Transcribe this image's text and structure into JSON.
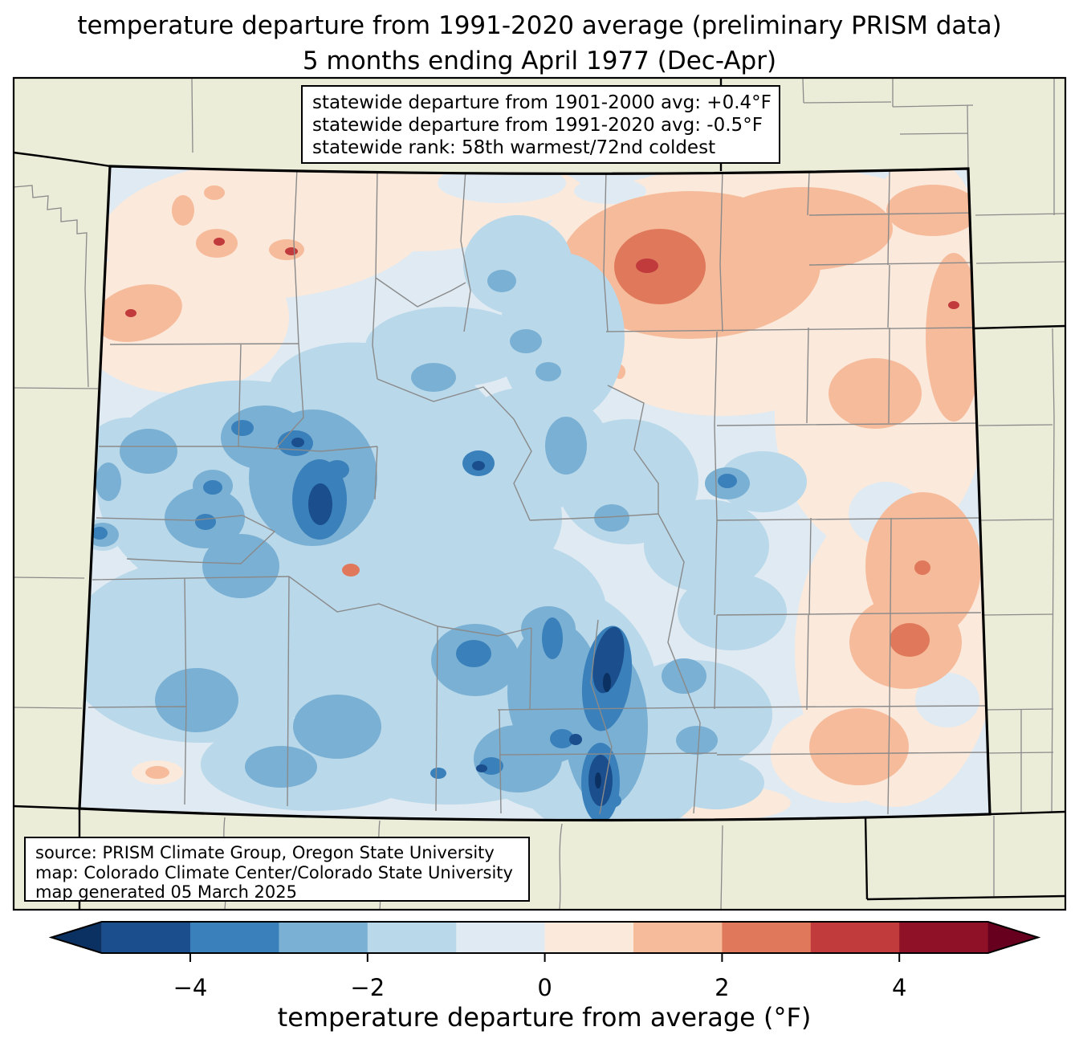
{
  "title": {
    "line1": "temperature departure from 1991-2020 average (preliminary PRISM data)",
    "line2": "5 months ending April 1977 (Dec-Apr)"
  },
  "stats_box": {
    "line1": "statewide departure from 1901-2000 avg: +0.4°F",
    "line2": "statewide departure from 1991-2020 avg: -0.5°F",
    "line3": "statewide rank: 58th warmest/72nd coldest"
  },
  "source_box": {
    "line1": "source: PRISM Climate Group, Oregon State University",
    "line2": "map: Colorado Climate Center/Colorado State University",
    "line3": "map generated 05 March 2025"
  },
  "colorbar": {
    "label": "temperature departure from average (°F)",
    "range": [
      -5,
      5
    ],
    "ticks": [
      {
        "value": -4,
        "label": "−4"
      },
      {
        "value": -2,
        "label": "−2"
      },
      {
        "value": 0,
        "label": "0"
      },
      {
        "value": 2,
        "label": "2"
      },
      {
        "value": 4,
        "label": "4"
      }
    ],
    "bin_colors": [
      "#1a4e8c",
      "#3a80bb",
      "#7ab0d3",
      "#b9d8ea",
      "#dfeaf2",
      "#fbe9dc",
      "#f6bb9b",
      "#e0795c",
      "#c13a3c",
      "#8e1127"
    ],
    "under_color": "#0b3162",
    "over_color": "#67001f"
  },
  "map": {
    "background_color": "#ecedd9",
    "state_border_color": "#000000",
    "county_line_color": "#8a8a8a",
    "frame_color": "#000000"
  }
}
